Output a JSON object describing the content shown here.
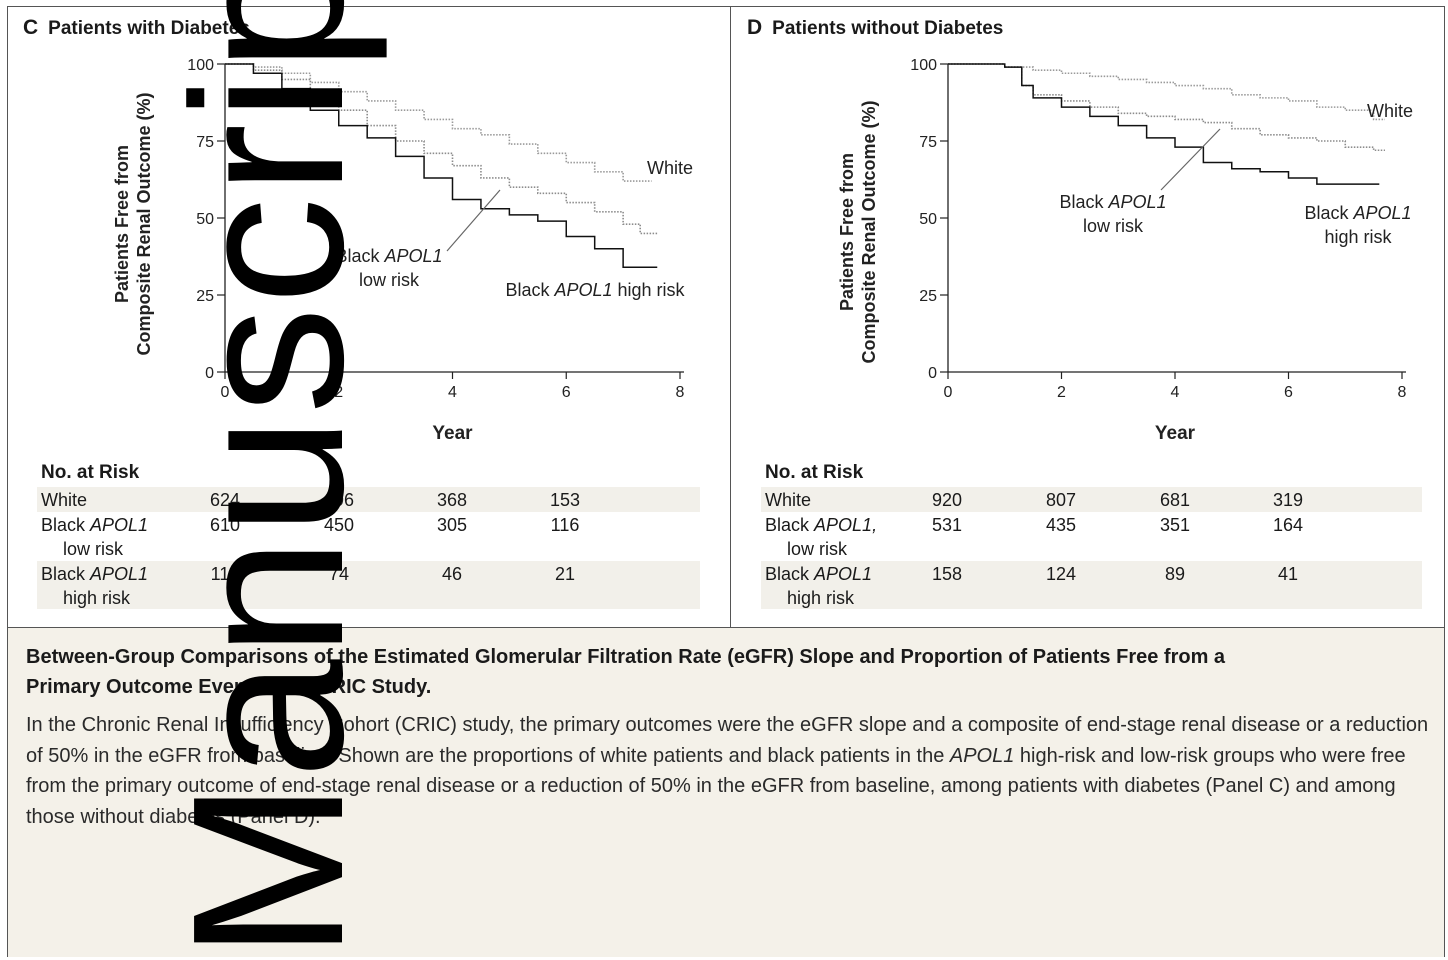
{
  "panels": {
    "c": {
      "letter": "C",
      "title": "Patients with Diabetes"
    },
    "d": {
      "letter": "D",
      "title": "Patients without Diabetes"
    }
  },
  "axis_common": {
    "ylabel_line1": "Patients Free from",
    "ylabel_line2": "Composite Renal Outcome (%)",
    "xlabel": "Year"
  },
  "annotations": {
    "c": {
      "white": "White",
      "low1": "Black ",
      "low1_it": "APOL1",
      "low2": "low risk",
      "high1": "Black ",
      "high1_it": "APOL1",
      "high2": " high risk"
    },
    "d": {
      "white": "White",
      "low1": "Black ",
      "low1_it": "APOL1",
      "low2": "low risk",
      "high1": "Black ",
      "high1_it": "APOL1",
      "high2": "high risk"
    }
  },
  "risk": {
    "title": "No. at Risk",
    "c": {
      "rows": [
        {
          "label1": "White",
          "label1_it": "",
          "label2": "",
          "values": [
            "624",
            "496",
            "368",
            "153"
          ]
        },
        {
          "label1": "Black ",
          "label1_it": "APOL1",
          "label2": "low risk",
          "values": [
            "610",
            "450",
            "305",
            "116"
          ]
        },
        {
          "label1": "Black ",
          "label1_it": "APOL1",
          "label2": "high risk",
          "values": [
            "112",
            "74",
            "46",
            "21"
          ]
        }
      ]
    },
    "d": {
      "rows": [
        {
          "label1": "White",
          "label1_it": "",
          "label2": "",
          "values": [
            "920",
            "807",
            "681",
            "319"
          ]
        },
        {
          "label1": "Black ",
          "label1_it": "APOL1,",
          "label2": "low risk",
          "values": [
            "531",
            "435",
            "351",
            "164"
          ]
        },
        {
          "label1": "Black ",
          "label1_it": "APOL1",
          "label2": "high risk",
          "values": [
            "158",
            "124",
            "89",
            "41"
          ]
        }
      ]
    }
  },
  "caption": {
    "title": "Between-Group Comparisons of the Estimated Glomerular Filtration Rate (eGFR) Slope and Proportion of Patients Free from a Primary Outcome Event in the CRIC Study.",
    "text_a": "In the Chronic Renal Insufficiency Cohort (CRIC) study, the primary outcomes were the eGFR slope and a composite of end-stage renal disease or a reduction of 50% in the eGFR from baseline. Shown are the proportions of white patients and black patients in the ",
    "text_it": "APOL1",
    "text_b": " high-risk and low-risk groups who were free from the primary outcome of end-stage renal disease or a reduction of 50% in the eGFR from baseline, among patients with diabetes (Panel C) and among those without diabetes (Panel D)."
  },
  "watermark": "Manuscript",
  "colors": {
    "white_curve": "#9a9a9a",
    "low_curve": "#8c8c8c",
    "high_curve": "#111111",
    "caption_bg": "#f4f1e9"
  },
  "chart_data": [
    {
      "type": "line",
      "panel": "C",
      "title": "Patients with Diabetes",
      "xlabel": "Year",
      "ylabel": "Patients Free from Composite Renal Outcome (%)",
      "xlim": [
        0,
        8
      ],
      "ylim": [
        0,
        100
      ],
      "xticks": [
        0,
        2,
        4,
        6,
        8
      ],
      "yticks": [
        0,
        25,
        50,
        75,
        100
      ],
      "grid": false,
      "series": [
        {
          "name": "White",
          "style": "dotted",
          "x": [
            0,
            0.5,
            1,
            1.5,
            2,
            2.5,
            3,
            3.5,
            4,
            4.5,
            5,
            5.5,
            6,
            6.5,
            7,
            7.5
          ],
          "y": [
            100,
            99,
            97,
            94,
            91,
            88,
            85,
            82,
            79,
            77,
            74,
            71,
            68,
            65,
            62,
            62
          ]
        },
        {
          "name": "Black APOL1 low risk",
          "style": "dotted",
          "x": [
            0,
            0.5,
            1,
            1.5,
            2,
            2.5,
            3,
            3.5,
            4,
            4.5,
            5,
            5.5,
            6,
            6.5,
            7,
            7.3,
            7.6
          ],
          "y": [
            100,
            98,
            95,
            90,
            85,
            80,
            75,
            71,
            67,
            63,
            60,
            58,
            55,
            52,
            48,
            45,
            45
          ]
        },
        {
          "name": "Black APOL1 high risk",
          "style": "solid",
          "x": [
            0,
            0.5,
            1,
            1.5,
            2,
            2.5,
            3,
            3.5,
            4,
            4.5,
            5,
            5.5,
            6,
            6.5,
            7,
            7.6
          ],
          "y": [
            100,
            97,
            92,
            85,
            80,
            76,
            70,
            63,
            56,
            53,
            51,
            49,
            44,
            40,
            34,
            34
          ]
        }
      ]
    },
    {
      "type": "line",
      "panel": "D",
      "title": "Patients without Diabetes",
      "xlabel": "Year",
      "ylabel": "Patients Free from Composite Renal Outcome (%)",
      "xlim": [
        0,
        8
      ],
      "ylim": [
        0,
        100
      ],
      "xticks": [
        0,
        2,
        4,
        6,
        8
      ],
      "yticks": [
        0,
        25,
        50,
        75,
        100
      ],
      "grid": false,
      "series": [
        {
          "name": "White",
          "style": "dotted",
          "x": [
            0,
            0.5,
            1,
            1.5,
            2,
            2.5,
            3,
            3.5,
            4,
            4.5,
            5,
            5.5,
            6,
            6.5,
            7,
            7.5,
            7.7
          ],
          "y": [
            100,
            100,
            99,
            98,
            97,
            96,
            95,
            94,
            93,
            92,
            90,
            89,
            88,
            86,
            85,
            82,
            82
          ]
        },
        {
          "name": "Black APOL1 low risk",
          "style": "dotted",
          "x": [
            0,
            0.5,
            1,
            1.3,
            1.5,
            2,
            2.5,
            3,
            3.5,
            4,
            4.5,
            5,
            5.5,
            6,
            6.5,
            7,
            7.5,
            7.7
          ],
          "y": [
            100,
            100,
            99,
            93,
            90,
            88,
            86,
            84,
            83,
            82,
            81,
            79,
            77,
            76,
            75,
            73,
            72,
            72
          ]
        },
        {
          "name": "Black APOL1 high risk",
          "style": "solid",
          "x": [
            0,
            0.5,
            1,
            1.3,
            1.5,
            2,
            2.5,
            3,
            3.5,
            4,
            4.5,
            5,
            5.5,
            6,
            6.5,
            7,
            7.6
          ],
          "y": [
            100,
            100,
            99,
            93,
            89,
            86,
            83,
            80,
            76,
            73,
            68,
            66,
            65,
            63,
            61,
            61,
            61
          ]
        }
      ]
    }
  ]
}
